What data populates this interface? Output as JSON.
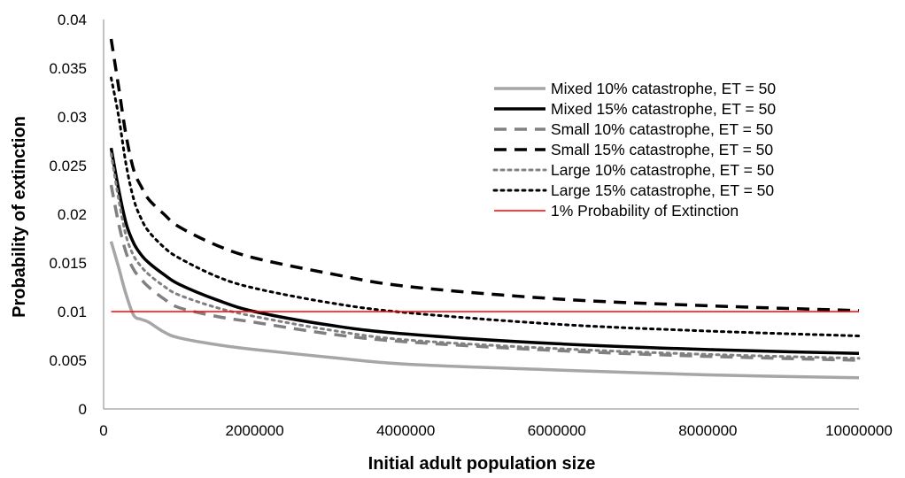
{
  "chart_data": {
    "type": "line",
    "title": "",
    "xlabel": "Initial adult population size",
    "ylabel": "Probability of extinction",
    "xlim": [
      0,
      10000000
    ],
    "ylim": [
      0,
      0.04
    ],
    "x_ticks": [
      0,
      2000000,
      4000000,
      6000000,
      8000000,
      10000000
    ],
    "x_tick_labels": [
      "0",
      "2000000",
      "4000000",
      "6000000",
      "8000000",
      "10000000"
    ],
    "y_ticks": [
      0,
      0.005,
      0.01,
      0.015,
      0.02,
      0.025,
      0.03,
      0.035,
      0.04
    ],
    "y_tick_labels": [
      "0",
      "0.005",
      "0.01",
      "0.015",
      "0.02",
      "0.025",
      "0.03",
      "0.035",
      "0.04"
    ],
    "grid": false,
    "legend_position": "top-right",
    "series": [
      {
        "name": "Mixed 10% catastrophe, ET = 50",
        "color": "#a6a6a6",
        "style": "solid",
        "x": [
          100000,
          200000,
          300000,
          400000,
          500000,
          600000,
          800000,
          1000000,
          1500000,
          2000000,
          3000000,
          4000000,
          6000000,
          8000000,
          10000000
        ],
        "values": [
          0.0172,
          0.0145,
          0.0117,
          0.0096,
          0.0092,
          0.0089,
          0.0079,
          0.0073,
          0.0066,
          0.0061,
          0.0053,
          0.0046,
          0.004,
          0.0035,
          0.0032
        ]
      },
      {
        "name": "Mixed 15% catastrophe, ET = 50",
        "color": "#000000",
        "style": "solid",
        "x": [
          100000,
          200000,
          300000,
          400000,
          500000,
          600000,
          800000,
          1000000,
          1500000,
          2000000,
          3000000,
          4000000,
          6000000,
          8000000,
          10000000
        ],
        "values": [
          0.0268,
          0.0225,
          0.019,
          0.017,
          0.0158,
          0.015,
          0.0138,
          0.0128,
          0.0112,
          0.01,
          0.0086,
          0.0077,
          0.0067,
          0.0061,
          0.0057
        ]
      },
      {
        "name": "Small 10% catastrophe, ET = 50",
        "color": "#808080",
        "style": "dash",
        "x": [
          100000,
          200000,
          300000,
          400000,
          500000,
          600000,
          800000,
          1000000,
          1500000,
          2000000,
          3000000,
          4000000,
          6000000,
          8000000,
          10000000
        ],
        "values": [
          0.023,
          0.019,
          0.016,
          0.0143,
          0.0133,
          0.0125,
          0.0113,
          0.0104,
          0.0095,
          0.0089,
          0.0077,
          0.0069,
          0.006,
          0.0054,
          0.005
        ]
      },
      {
        "name": "Small 15% catastrophe, ET = 50",
        "color": "#000000",
        "style": "dash",
        "x": [
          100000,
          200000,
          300000,
          400000,
          500000,
          600000,
          800000,
          1000000,
          1500000,
          2000000,
          3000000,
          4000000,
          6000000,
          8000000,
          10000000
        ],
        "values": [
          0.038,
          0.033,
          0.028,
          0.0245,
          0.0228,
          0.0215,
          0.02,
          0.0187,
          0.0168,
          0.0155,
          0.0139,
          0.0126,
          0.0113,
          0.0106,
          0.0101
        ]
      },
      {
        "name": "Large 10% catastrophe, ET = 50",
        "color": "#808080",
        "style": "dot",
        "x": [
          100000,
          200000,
          300000,
          400000,
          500000,
          600000,
          800000,
          1000000,
          1500000,
          2000000,
          3000000,
          4000000,
          6000000,
          8000000,
          10000000
        ],
        "values": [
          0.0262,
          0.0215,
          0.0177,
          0.0157,
          0.0146,
          0.0138,
          0.0126,
          0.0117,
          0.0104,
          0.0095,
          0.0081,
          0.0071,
          0.0062,
          0.0056,
          0.0052
        ]
      },
      {
        "name": "Large 15% catastrophe, ET = 50",
        "color": "#000000",
        "style": "dot",
        "x": [
          100000,
          200000,
          300000,
          400000,
          500000,
          600000,
          800000,
          1000000,
          1500000,
          2000000,
          3000000,
          4000000,
          6000000,
          8000000,
          10000000
        ],
        "values": [
          0.034,
          0.03,
          0.025,
          0.0215,
          0.0195,
          0.0182,
          0.0166,
          0.0155,
          0.0136,
          0.0124,
          0.0109,
          0.0099,
          0.0087,
          0.008,
          0.0075
        ]
      },
      {
        "name": "1% Probability of Extinction",
        "color": "#ff0000",
        "style": "solid-thin",
        "x": [
          100000,
          10000000
        ],
        "values": [
          0.01,
          0.01
        ]
      }
    ]
  }
}
